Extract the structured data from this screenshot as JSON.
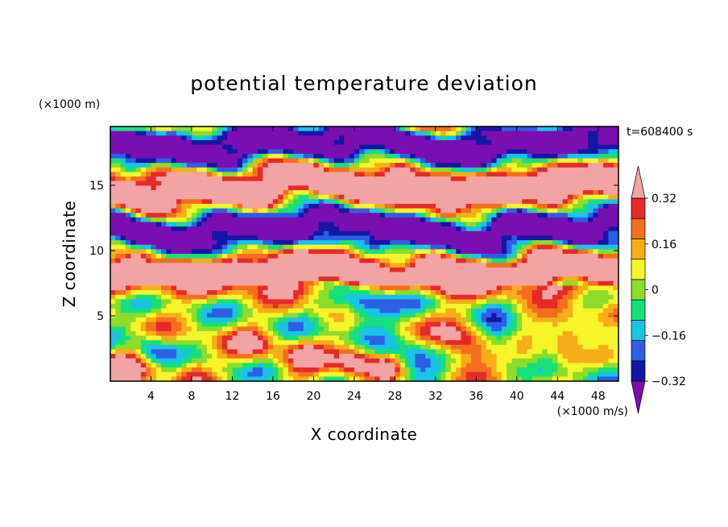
{
  "chart_data": {
    "type": "heatmap",
    "title": "potential temperature deviation",
    "xlabel": "X coordinate",
    "ylabel": "Z coordinate",
    "x_unit": "(×1000 m/s)",
    "y_unit": "(×1000 m)",
    "time_label": "t=608400 s",
    "xlim": [
      0,
      50
    ],
    "ylim": [
      0,
      19.5
    ],
    "x_ticks": [
      4,
      8,
      12,
      16,
      20,
      24,
      28,
      32,
      36,
      40,
      44,
      48
    ],
    "y_ticks": [
      5,
      10,
      15
    ],
    "colorbar": {
      "levels": [
        -0.4,
        -0.32,
        -0.24,
        -0.16,
        -0.08,
        0,
        0.08,
        0.16,
        0.24,
        0.32,
        0.4
      ],
      "labeled_ticks": [
        -0.32,
        -0.16,
        0,
        0.16,
        0.32
      ],
      "tick_labels": [
        "−0.32",
        "−0.16",
        "0",
        "0.16",
        "0.32"
      ],
      "colors": [
        "#7a0fb0",
        "#1616a6",
        "#2d5fe6",
        "#19c3e6",
        "#17e07a",
        "#8ddc2a",
        "#f5f52a",
        "#f5ae1a",
        "#f56e1e",
        "#e62a2a",
        "#f2a3a3"
      ],
      "extend": "both"
    }
  }
}
